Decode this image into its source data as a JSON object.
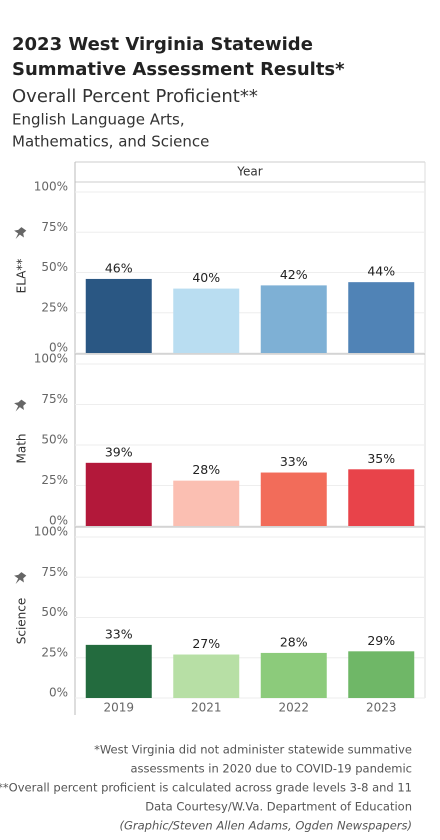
{
  "header": {
    "title_lines": [
      "2023 West Virginia Statewide",
      "Summative Assessment Results*"
    ],
    "subtitle": "Overall Percent Proficient**",
    "description_lines": [
      "English Language Arts,",
      "Mathematics, and Science"
    ]
  },
  "chart_data": {
    "type": "bar",
    "x_label": "Year",
    "categories": [
      "2019",
      "2021",
      "2022",
      "2023"
    ],
    "ylim": [
      0,
      100
    ],
    "yticks": [
      {
        "value": 0,
        "label": "0%"
      },
      {
        "value": 25,
        "label": "25%"
      },
      {
        "value": 50,
        "label": "50%"
      },
      {
        "value": 75,
        "label": "75%"
      },
      {
        "value": 100,
        "label": "100%"
      }
    ],
    "grid": true,
    "series": [
      {
        "name": "ELA**",
        "colors": [
          "#2a5783",
          "#b9ddf1",
          "#7eb0d5",
          "#5083b6"
        ],
        "values": [
          46,
          40,
          42,
          44
        ],
        "value_labels": [
          "46%",
          "40%",
          "42%",
          "44%"
        ]
      },
      {
        "name": "Math",
        "colors": [
          "#b3183a",
          "#fbbfb2",
          "#f26c5a",
          "#e8434a"
        ],
        "values": [
          39,
          28,
          33,
          35
        ],
        "value_labels": [
          "39%",
          "28%",
          "33%",
          "35%"
        ]
      },
      {
        "name": "Science",
        "colors": [
          "#236b3e",
          "#b7dfa5",
          "#8ccb7b",
          "#6fb767"
        ],
        "values": [
          33,
          27,
          28,
          29
        ],
        "value_labels": [
          "33%",
          "27%",
          "28%",
          "29%"
        ]
      }
    ]
  },
  "footnotes": [
    "*West Virginia did not administer statewide summative",
    "assessments in 2020 due to COVID-19 pandemic",
    "**Overall percent proficient is calculated across grade levels 3-8 and 11",
    "Data Courtesy/W.Va. Department of Education",
    "(Graphic/Steven Allen Adams, Ogden Newspapers)"
  ]
}
